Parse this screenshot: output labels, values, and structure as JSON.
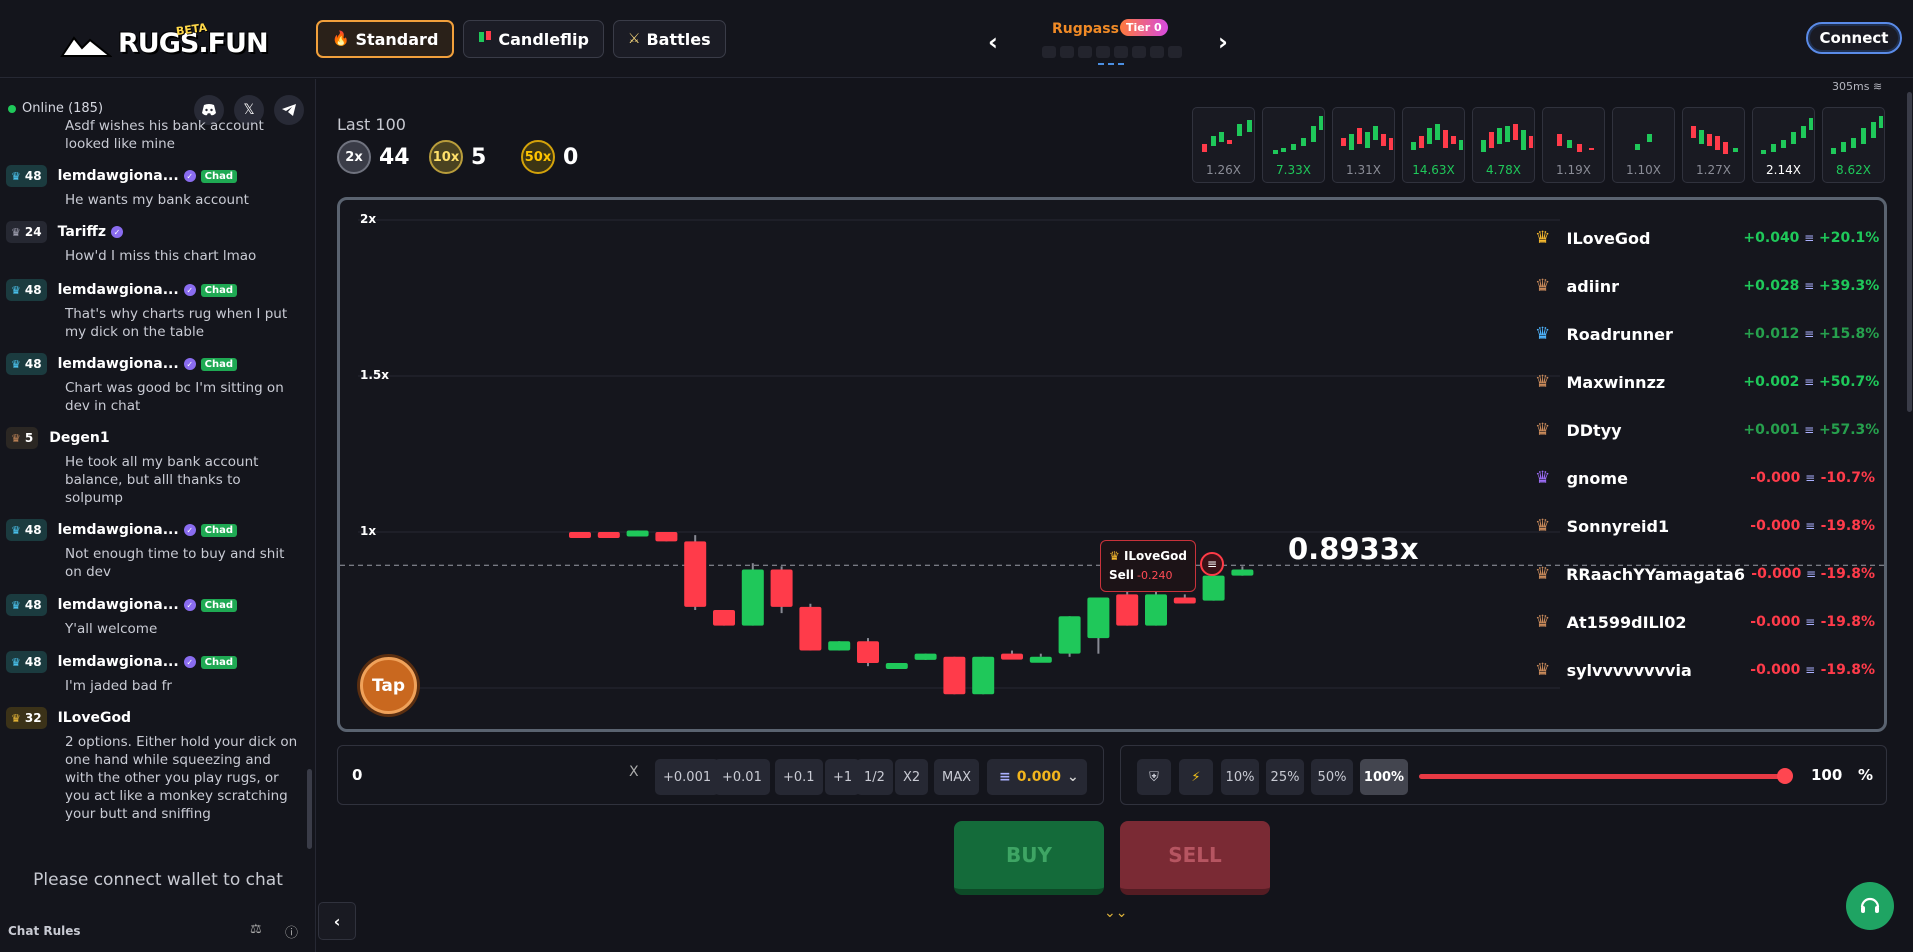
{
  "header": {
    "logo_text": "RUGS.FUN",
    "logo_badge": "BETA",
    "tabs": [
      {
        "label": "Standard",
        "icon": "flame-icon",
        "active": true
      },
      {
        "label": "Candleflip",
        "icon": "candle-icon",
        "active": false
      },
      {
        "label": "Battles",
        "icon": "swords-icon",
        "active": false
      }
    ],
    "rugpass": {
      "title": "Rugpass",
      "tier": "Tier 0"
    },
    "connect_label": "Connect"
  },
  "sidebar": {
    "online": "Online (185)",
    "socials": [
      "discord-icon",
      "x-icon",
      "telegram-icon"
    ],
    "messages": [
      {
        "user": "",
        "level": "",
        "text": "Asdf wishes his bank account looked like mine"
      },
      {
        "user": "lemdawgiona...",
        "level": "48",
        "verified": true,
        "badge": "Chad",
        "text": "He wants my bank account"
      },
      {
        "user": "Tariffz",
        "level": "24",
        "verified": true,
        "badge": "",
        "text": "How'd I miss this chart lmao"
      },
      {
        "user": "lemdawgiona...",
        "level": "48",
        "verified": true,
        "badge": "Chad",
        "text": "That's why charts rug when I put my dick on the table"
      },
      {
        "user": "lemdawgiona...",
        "level": "48",
        "verified": true,
        "badge": "Chad",
        "text": "Chart was good bc I'm sitting on dev in chat"
      },
      {
        "user": "Degen1",
        "level": "5",
        "verified": false,
        "badge": "",
        "text": "He took all my bank account balance, but alll thanks to solpump"
      },
      {
        "user": "lemdawgiona...",
        "level": "48",
        "verified": true,
        "badge": "Chad",
        "text": "Not enough time to buy and shit on dev"
      },
      {
        "user": "lemdawgiona...",
        "level": "48",
        "verified": true,
        "badge": "Chad",
        "text": "Y'all welcome"
      },
      {
        "user": "lemdawgiona...",
        "level": "48",
        "verified": true,
        "badge": "Chad",
        "text": "I'm jaded bad fr"
      },
      {
        "user": "ILoveGod",
        "level": "32",
        "verified": false,
        "badge": "",
        "text": "2 options. Either hold your dick on one hand while squeezing and with the other you play rugs, or you act like a monkey scratching your butt and sniffing"
      }
    ],
    "connect_note": "Please connect wallet to chat",
    "rules_label": "Chat Rules"
  },
  "latency": "305ms",
  "stats": {
    "title": "Last 100",
    "items": [
      {
        "badge": "2x",
        "value": "44"
      },
      {
        "badge": "10x",
        "value": "5"
      },
      {
        "badge": "50x",
        "value": "0"
      }
    ]
  },
  "history": [
    {
      "value": "1.26X",
      "color": "#8a8c96"
    },
    {
      "value": "7.33X",
      "color": "#1fc85a"
    },
    {
      "value": "1.31X",
      "color": "#8a8c96"
    },
    {
      "value": "14.63X",
      "color": "#1fc85a"
    },
    {
      "value": "4.78X",
      "color": "#1fc85a"
    },
    {
      "value": "1.19X",
      "color": "#8a8c96"
    },
    {
      "value": "1.10X",
      "color": "#8a8c96"
    },
    {
      "value": "1.27X",
      "color": "#8a8c96"
    },
    {
      "value": "2.14X",
      "color": "#ffffff"
    },
    {
      "value": "8.62X",
      "color": "#1fc85a"
    }
  ],
  "chart": {
    "y_labels": [
      "2x",
      "1.5x",
      "1x"
    ],
    "multiplier": "0.8933x",
    "tap_label": "Tap",
    "tooltip": {
      "user": "ILoveGod",
      "action": "Sell",
      "amount": "-0.240"
    }
  },
  "chart_data": {
    "type": "candlestick",
    "ylim": [
      0.5,
      2.0
    ],
    "reference_line": 0.8933,
    "candles": [
      {
        "o": 1.0,
        "c": 0.99,
        "h": 1.0,
        "l": 0.99
      },
      {
        "o": 1.0,
        "c": 0.995,
        "h": 1.0,
        "l": 0.99
      },
      {
        "o": 0.995,
        "c": 1.005,
        "h": 1.005,
        "l": 0.995
      },
      {
        "o": 1.0,
        "c": 0.97,
        "h": 1.0,
        "l": 0.97
      },
      {
        "o": 0.97,
        "c": 0.76,
        "h": 0.99,
        "l": 0.75
      },
      {
        "o": 0.75,
        "c": 0.7,
        "h": 0.75,
        "l": 0.7
      },
      {
        "o": 0.7,
        "c": 0.88,
        "h": 0.9,
        "l": 0.7
      },
      {
        "o": 0.88,
        "c": 0.76,
        "h": 0.89,
        "l": 0.74
      },
      {
        "o": 0.76,
        "c": 0.62,
        "h": 0.77,
        "l": 0.62
      },
      {
        "o": 0.62,
        "c": 0.65,
        "h": 0.65,
        "l": 0.62
      },
      {
        "o": 0.65,
        "c": 0.58,
        "h": 0.66,
        "l": 0.57
      },
      {
        "o": 0.57,
        "c": 0.58,
        "h": 0.58,
        "l": 0.57
      },
      {
        "o": 0.59,
        "c": 0.61,
        "h": 0.61,
        "l": 0.59
      },
      {
        "o": 0.6,
        "c": 0.48,
        "h": 0.6,
        "l": 0.48
      },
      {
        "o": 0.48,
        "c": 0.6,
        "h": 0.6,
        "l": 0.48
      },
      {
        "o": 0.61,
        "c": 0.6,
        "h": 0.62,
        "l": 0.6
      },
      {
        "o": 0.6,
        "c": 0.6,
        "h": 0.61,
        "l": 0.6
      },
      {
        "o": 0.61,
        "c": 0.73,
        "h": 0.73,
        "l": 0.6
      },
      {
        "o": 0.66,
        "c": 0.79,
        "h": 0.79,
        "l": 0.61
      },
      {
        "o": 0.8,
        "c": 0.7,
        "h": 0.84,
        "l": 0.7
      },
      {
        "o": 0.7,
        "c": 0.8,
        "h": 0.81,
        "l": 0.7
      },
      {
        "o": 0.79,
        "c": 0.78,
        "h": 0.8,
        "l": 0.78
      },
      {
        "o": 0.78,
        "c": 0.86,
        "h": 0.88,
        "l": 0.78
      },
      {
        "o": 0.86,
        "c": 0.88,
        "h": 0.89,
        "l": 0.86
      }
    ]
  },
  "leaderboard": [
    {
      "name": "ILoveGod",
      "amount": "+0.040",
      "pct": "+20.1%",
      "tone": "pos",
      "icon": "crown-icon",
      "icon_color": "#f5b82e"
    },
    {
      "name": "adiinr",
      "amount": "+0.028",
      "pct": "+39.3%",
      "tone": "pos",
      "icon": "bronze-rank-icon",
      "icon_color": "#c98a5a"
    },
    {
      "name": "Roadrunner",
      "amount": "+0.012",
      "pct": "+15.8%",
      "tone": "pos-dim",
      "icon": "diamond-rank-icon",
      "icon_color": "#4fb6ff"
    },
    {
      "name": "Maxwinnzz",
      "amount": "+0.002",
      "pct": "+50.7%",
      "tone": "pos",
      "icon": "bronze-rank-icon",
      "icon_color": "#c98a5a"
    },
    {
      "name": "DDtyy",
      "amount": "+0.001",
      "pct": "+57.3%",
      "tone": "pos-dim",
      "icon": "bronze-rank-icon",
      "icon_color": "#c98a5a"
    },
    {
      "name": "gnome",
      "amount": "-0.000",
      "pct": "-10.7%",
      "tone": "neg",
      "icon": "purple-rank-icon",
      "icon_color": "#9b6cf5"
    },
    {
      "name": "Sonnyreid1",
      "amount": "-0.000",
      "pct": "-19.8%",
      "tone": "neg",
      "icon": "bronze-rank-icon",
      "icon_color": "#c98a5a"
    },
    {
      "name": "RRaachYYamagata6",
      "amount": "-0.000",
      "pct": "-19.8%",
      "tone": "neg",
      "icon": "bronze-rank-icon",
      "icon_color": "#c98a5a"
    },
    {
      "name": "At1599dILl02",
      "amount": "-0.000",
      "pct": "-19.8%",
      "tone": "neg",
      "icon": "bronze-rank-icon",
      "icon_color": "#c98a5a"
    },
    {
      "name": "sylvvvvvvvvia",
      "amount": "-0.000",
      "pct": "-19.8%",
      "tone": "neg",
      "icon": "bronze-rank-icon",
      "icon_color": "#c98a5a"
    }
  ],
  "trade": {
    "amount_value": "0",
    "clear_label": "X",
    "quick_buttons": [
      "+0.001",
      "+0.01",
      "+0.1",
      "+1",
      "1/2",
      "X2",
      "MAX"
    ],
    "balance": "0.000",
    "sell_presets": [
      "10%",
      "25%",
      "50%",
      "100%"
    ],
    "sell_percent": "100",
    "sell_percent_unit": "%",
    "sell_fraction": 1.0,
    "buy_label": "BUY",
    "sell_label": "SELL"
  },
  "colors": {
    "accent": "#f1a03c",
    "up": "#1fc85a",
    "down": "#ff3b4a",
    "background": "#13141b"
  }
}
